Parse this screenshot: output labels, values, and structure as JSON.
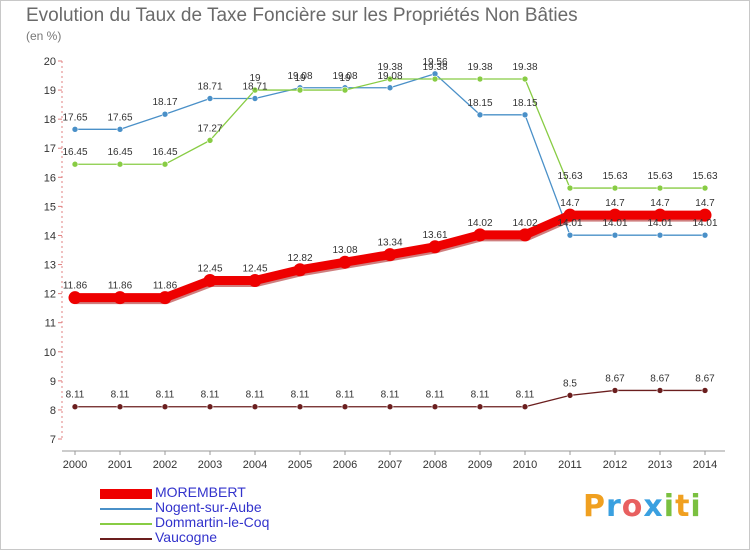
{
  "header": {
    "title": "Evolution du Taux de Taxe Foncière sur les Propriétés Non Bâties",
    "subtitle": "(en %)"
  },
  "brand": {
    "letters": [
      "P",
      "r",
      "o",
      "x",
      "i",
      "t",
      "i"
    ],
    "colors": [
      "#f0a020",
      "#3aa0e0",
      "#e86060",
      "#3aa0e0",
      "#7ac040",
      "#f0a020",
      "#7ac040"
    ]
  },
  "chart_data": {
    "type": "line",
    "title": "Evolution du Taux de Taxe Foncière sur les Propriétés Non Bâties",
    "ylabel": "(en %)",
    "x": [
      2000,
      2001,
      2002,
      2003,
      2004,
      2005,
      2006,
      2007,
      2008,
      2009,
      2010,
      2011,
      2012,
      2013,
      2014
    ],
    "ylim": [
      7,
      20
    ],
    "yticks": [
      7,
      8,
      9,
      10,
      11,
      12,
      13,
      14,
      15,
      16,
      17,
      18,
      19,
      20
    ],
    "grid": false,
    "legend": "bottom",
    "series": [
      {
        "name": "MOREMBERT",
        "color": "#ee0000",
        "values": [
          11.86,
          11.86,
          11.86,
          12.45,
          12.45,
          12.82,
          13.08,
          13.34,
          13.61,
          14.02,
          14.02,
          14.7,
          14.7,
          14.7,
          14.7
        ],
        "labels": [
          "11.86",
          "11.86",
          "11.86",
          "12.45",
          "12.45",
          "12.82",
          "13.08",
          "13.34",
          "13.61",
          "14.02",
          "14.02",
          "14.7",
          "14.7",
          "14.7",
          "14.7"
        ]
      },
      {
        "name": "Nogent-sur-Aube",
        "color": "#4a90c8",
        "values": [
          17.65,
          17.65,
          18.17,
          18.71,
          18.71,
          19.08,
          19.08,
          19.08,
          19.56,
          18.15,
          18.15,
          14.01,
          14.01,
          14.01,
          14.01
        ],
        "labels": [
          "17.65",
          "17.65",
          "18.17",
          "18.71",
          "18.71",
          "19.08",
          "19.08",
          "19.08",
          "19.56",
          "18.15",
          "18.15",
          "14.01",
          "14.01",
          "14.01",
          "14.01"
        ]
      },
      {
        "name": "Dommartin-le-Coq",
        "color": "#88cc44",
        "values": [
          16.45,
          16.45,
          16.45,
          17.27,
          19,
          19,
          19,
          19.38,
          19.38,
          19.38,
          19.38,
          15.63,
          15.63,
          15.63,
          15.63
        ],
        "labels": [
          "16.45",
          "16.45",
          "16.45",
          "17.27",
          "19",
          "19",
          "19",
          "19.38",
          "19.38",
          "19.38",
          "19.38",
          "15.63",
          "15.63",
          "15.63",
          "15.63"
        ]
      },
      {
        "name": "Vaucogne",
        "color": "#6b1e1e",
        "values": [
          8.11,
          8.11,
          8.11,
          8.11,
          8.11,
          8.11,
          8.11,
          8.11,
          8.11,
          8.11,
          8.11,
          8.5,
          8.67,
          8.67,
          8.67
        ],
        "labels": [
          "8.11",
          "8.11",
          "8.11",
          "8.11",
          "8.11",
          "8.11",
          "8.11",
          "8.11",
          "8.11",
          "8.11",
          "8.11",
          "8.5",
          "8.67",
          "8.67",
          "8.67"
        ]
      }
    ]
  }
}
